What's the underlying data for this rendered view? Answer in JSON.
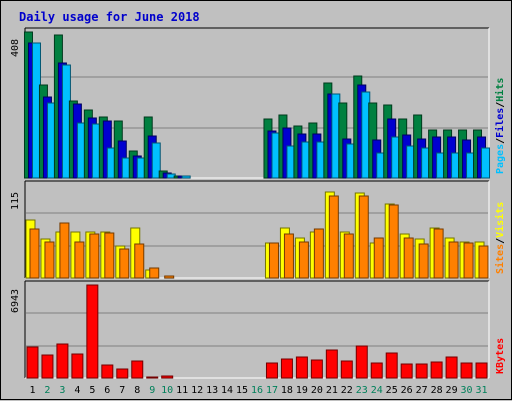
{
  "chart_data": [
    {
      "type": "bar",
      "title": "Daily usage for June 2018",
      "panel": "hits-files-pages",
      "ymax_label": "408",
      "ylim": [
        0,
        408
      ],
      "legend": [
        "Pages",
        "/",
        "Files",
        "/",
        "Hits"
      ],
      "categories": [
        "1",
        "2",
        "3",
        "4",
        "5",
        "6",
        "7",
        "8",
        "9",
        "10",
        "11",
        "12",
        "13",
        "14",
        "15",
        "16",
        "17",
        "18",
        "19",
        "20",
        "21",
        "22",
        "23",
        "24",
        "25",
        "26",
        "27",
        "28",
        "29",
        "30",
        "31"
      ],
      "series": [
        {
          "name": "Hits",
          "color": "#008040",
          "values": [
            408,
            260,
            400,
            215,
            190,
            170,
            160,
            75,
            170,
            20,
            5,
            0,
            0,
            0,
            0,
            0,
            165,
            175,
            145,
            155,
            265,
            210,
            285,
            210,
            205,
            165,
            175,
            135,
            135,
            135,
            135
          ]
        },
        {
          "name": "Files",
          "color": "#0000d0",
          "values": [
            378,
            226,
            320,
            208,
            168,
            158,
            103,
            62,
            118,
            14,
            4,
            0,
            0,
            0,
            0,
            0,
            130,
            140,
            122,
            122,
            235,
            110,
            260,
            105,
            165,
            120,
            110,
            115,
            115,
            105,
            115
          ]
        },
        {
          "name": "Pages",
          "color": "#00c0ff",
          "values": [
            378,
            210,
            315,
            155,
            152,
            85,
            55,
            55,
            97,
            10,
            3,
            0,
            0,
            0,
            0,
            0,
            125,
            90,
            100,
            100,
            235,
            95,
            240,
            70,
            115,
            90,
            85,
            70,
            70,
            70,
            85
          ]
        }
      ]
    },
    {
      "type": "bar",
      "panel": "sites-visits",
      "ymax_label": "115",
      "ylim": [
        0,
        115
      ],
      "legend": [
        "Sites",
        "/",
        "Visits"
      ],
      "categories": [
        "1",
        "2",
        "3",
        "4",
        "5",
        "6",
        "7",
        "8",
        "9",
        "10",
        "11",
        "12",
        "13",
        "14",
        "15",
        "16",
        "17",
        "18",
        "19",
        "20",
        "21",
        "22",
        "23",
        "24",
        "25",
        "26",
        "27",
        "28",
        "29",
        "30",
        "31"
      ],
      "series": [
        {
          "name": "Visits",
          "color": "#ffff00",
          "values": [
            72,
            48,
            57,
            57,
            57,
            57,
            40,
            62,
            10,
            0,
            0,
            0,
            0,
            0,
            0,
            0,
            43,
            62,
            50,
            57,
            106,
            57,
            105,
            43,
            92,
            55,
            48,
            62,
            50,
            45,
            45
          ]
        },
        {
          "name": "Sites",
          "color": "#ff8000",
          "values": [
            61,
            45,
            68,
            44,
            54,
            56,
            36,
            42,
            12,
            1,
            0,
            0,
            0,
            0,
            0,
            0,
            43,
            55,
            44,
            60,
            102,
            55,
            102,
            50,
            90,
            50,
            42,
            60,
            45,
            43,
            40
          ]
        }
      ]
    },
    {
      "type": "bar",
      "panel": "kbytes",
      "ymax_label": "6943",
      "ylim": [
        0,
        6943
      ],
      "legend": [
        "KBytes"
      ],
      "categories": [
        "1",
        "2",
        "3",
        "4",
        "5",
        "6",
        "7",
        "8",
        "9",
        "10",
        "11",
        "12",
        "13",
        "14",
        "15",
        "16",
        "17",
        "18",
        "19",
        "20",
        "21",
        "22",
        "23",
        "24",
        "25",
        "26",
        "27",
        "28",
        "29",
        "30",
        "31"
      ],
      "series": [
        {
          "name": "KBytes",
          "color": "#ff0000",
          "values": [
            2300,
            1700,
            2560,
            1780,
            6943,
            970,
            700,
            1300,
            60,
            60,
            0,
            0,
            0,
            0,
            0,
            0,
            1150,
            1400,
            1550,
            1320,
            2100,
            1300,
            2400,
            1150,
            1880,
            1030,
            1030,
            1190,
            1560,
            1140,
            1120
          ]
        }
      ]
    }
  ],
  "weekend_days": [
    2,
    3,
    9,
    10,
    16,
    17,
    23,
    24,
    30,
    31
  ],
  "colors": {
    "background": "#c0c0c0",
    "title": "#0000cc",
    "weekday": "#000000",
    "weekend": "#00805a",
    "hits": "#008040",
    "files": "#0000d0",
    "pages": "#00c0ff",
    "visits": "#ffff00",
    "sites": "#ff8000",
    "kbytes": "#ff0000"
  }
}
